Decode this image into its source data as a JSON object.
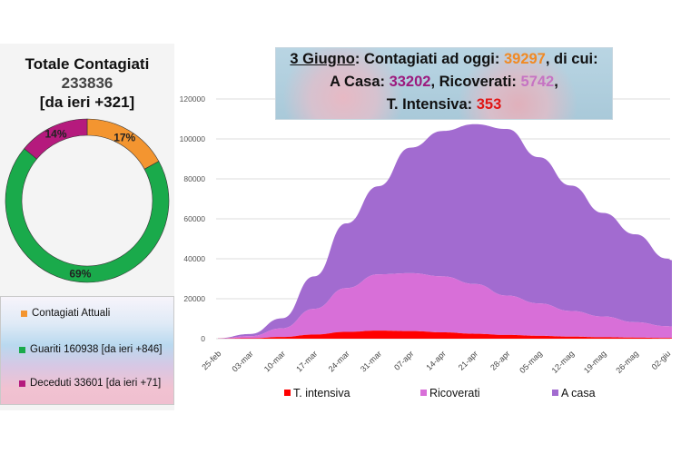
{
  "left": {
    "title": "Totale Contagiati",
    "total": "233836",
    "delta": "[da ieri +321]",
    "donut": [
      {
        "name": "Contagiati Attuali",
        "pct": 17,
        "label": "17%",
        "color": "#f39530"
      },
      {
        "name": "Guariti",
        "pct": 69,
        "label": "69%",
        "color": "#1aaa4b"
      },
      {
        "name": "Deceduti",
        "pct": 14,
        "label": "14%",
        "color": "#b51a7d"
      }
    ],
    "legend": [
      {
        "label": "Contagiati Attuali",
        "color": "#f39530"
      },
      {
        "label": "Guariti 160938 [da ieri +846]",
        "color": "#1aaa4b"
      },
      {
        "label": "Deceduti 33601 [da ieri +71]",
        "color": "#b51a7d"
      }
    ]
  },
  "banner": {
    "date": "3 Giugno",
    "t1": ": Contagiati ad oggi: ",
    "attuali": "39297",
    "t2": ", di cui:",
    "casa_label": "A Casa: ",
    "casa": "33202",
    "t3": ", Ricoverati: ",
    "ricoverati": "5742",
    "t4": ",",
    "ti_label": "T. Intensiva: ",
    "ti": "353"
  },
  "chart_data": {
    "type": "area",
    "stacked": true,
    "title": "",
    "xlabel": "",
    "ylabel": "",
    "ylim": [
      0,
      120000
    ],
    "yticks": [
      0,
      20000,
      40000,
      60000,
      80000,
      100000,
      120000
    ],
    "ytick_labels": [
      "0",
      "20000",
      "40000",
      "60000",
      "80000",
      "100000",
      "120000"
    ],
    "grid": true,
    "legend_position": "bottom",
    "x": [
      "25-feb",
      "03-mar",
      "10-mar",
      "17-mar",
      "24-mar",
      "31-mar",
      "07-apr",
      "14-apr",
      "21-apr",
      "28-apr",
      "05-mag",
      "12-mag",
      "19-mag",
      "26-mag",
      "02-giu",
      "03-giu"
    ],
    "xtick_labels": [
      "25-feb",
      "03-mar",
      "10-mar",
      "17-mar",
      "24-mar",
      "31-mar",
      "07-apr",
      "14-apr",
      "21-apr",
      "28-apr",
      "05-mag",
      "12-mag",
      "19-mag",
      "26-mag",
      "02-giu"
    ],
    "series": [
      {
        "name": "T. intensiva",
        "color": "#ff0000",
        "values": [
          35,
          229,
          877,
          2060,
          3396,
          4023,
          3792,
          3186,
          2471,
          1863,
          1427,
          1027,
          716,
          521,
          353,
          353
        ]
      },
      {
        "name": "Ricoverati",
        "color": "#d86fd8",
        "values": [
          101,
          1034,
          4316,
          12894,
          21937,
          28192,
          28976,
          28011,
          24906,
          19723,
          16270,
          12865,
          10400,
          7729,
          5916,
          5742
        ]
      },
      {
        "name": "A casa",
        "color": "#a26bd0",
        "values": [
          93,
          1065,
          5036,
          16248,
          32374,
          44116,
          62846,
          72777,
          80031,
          83398,
          73139,
          62740,
          51822,
          44001,
          33778,
          33202
        ]
      }
    ]
  }
}
